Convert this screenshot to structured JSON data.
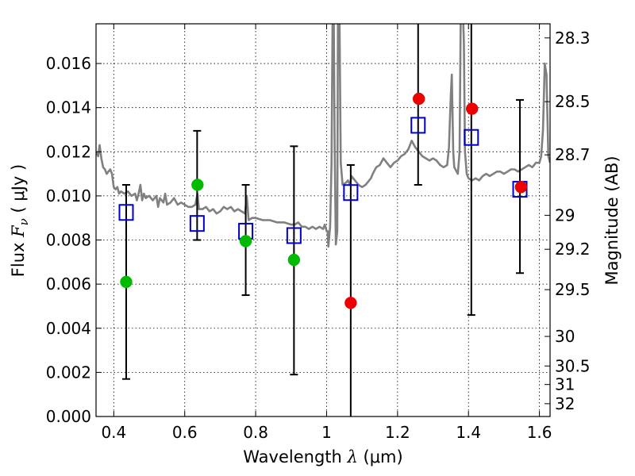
{
  "chart_data": {
    "type": "scatter",
    "title": "",
    "xlabel": {
      "prefix": "Wavelength ",
      "symbol": "λ",
      "units": " (μm)"
    },
    "ylabel": {
      "prefix": "Flux ",
      "symbol": "F",
      "subscript": "ν",
      "units": " ( μJy )"
    },
    "y2label": "Magnitude (AB)",
    "xlim": [
      0.35,
      1.63
    ],
    "ylim": [
      0.0,
      0.0178
    ],
    "grid": true,
    "x_ticks": [
      {
        "value": 0.4,
        "label": "0.4"
      },
      {
        "value": 0.6,
        "label": "0.6"
      },
      {
        "value": 0.8,
        "label": "0.8"
      },
      {
        "value": 1.0,
        "label": "1"
      },
      {
        "value": 1.2,
        "label": "1.2"
      },
      {
        "value": 1.4,
        "label": "1.4"
      },
      {
        "value": 1.6,
        "label": "1.6"
      }
    ],
    "y_ticks": [
      {
        "value": 0.0,
        "label": "0.000"
      },
      {
        "value": 0.002,
        "label": "0.002"
      },
      {
        "value": 0.004,
        "label": "0.004"
      },
      {
        "value": 0.006,
        "label": "0.006"
      },
      {
        "value": 0.008,
        "label": "0.008"
      },
      {
        "value": 0.01,
        "label": "0.010"
      },
      {
        "value": 0.012,
        "label": "0.012"
      },
      {
        "value": 0.014,
        "label": "0.014"
      },
      {
        "value": 0.016,
        "label": "0.016"
      }
    ],
    "y2_ticks": [
      {
        "flux": 0.01716,
        "label": "28.3"
      },
      {
        "flux": 0.01427,
        "label": "28.5"
      },
      {
        "flux": 0.01186,
        "label": "28.7"
      },
      {
        "flux": 0.00912,
        "label": "29"
      },
      {
        "flux": 0.00758,
        "label": "29.2"
      },
      {
        "flux": 0.00575,
        "label": "29.5"
      },
      {
        "flux": 0.00363,
        "label": "30"
      },
      {
        "flux": 0.00229,
        "label": "30.5"
      },
      {
        "flux": 0.00145,
        "label": "31"
      },
      {
        "flux": 0.00058,
        "label": "32"
      }
    ],
    "series": [
      {
        "color": "#808080",
        "kind": "line",
        "points": [
          [
            0.35,
            0.012
          ],
          [
            0.356,
            0.0118
          ],
          [
            0.36,
            0.0123
          ],
          [
            0.365,
            0.0117
          ],
          [
            0.37,
            0.0113
          ],
          [
            0.375,
            0.0112
          ],
          [
            0.38,
            0.011
          ],
          [
            0.385,
            0.0111
          ],
          [
            0.39,
            0.0112
          ],
          [
            0.395,
            0.011
          ],
          [
            0.4,
            0.0104
          ],
          [
            0.405,
            0.0103
          ],
          [
            0.41,
            0.0104
          ],
          [
            0.415,
            0.0101
          ],
          [
            0.42,
            0.0102
          ],
          [
            0.43,
            0.0101
          ],
          [
            0.44,
            0.0102
          ],
          [
            0.45,
            0.01
          ],
          [
            0.46,
            0.0101
          ],
          [
            0.465,
            0.0098
          ],
          [
            0.47,
            0.0101
          ],
          [
            0.475,
            0.0105
          ],
          [
            0.48,
            0.0098
          ],
          [
            0.485,
            0.0101
          ],
          [
            0.49,
            0.0099
          ],
          [
            0.5,
            0.01
          ],
          [
            0.51,
            0.0098
          ],
          [
            0.52,
            0.01
          ],
          [
            0.525,
            0.0095
          ],
          [
            0.53,
            0.0099
          ],
          [
            0.54,
            0.0097
          ],
          [
            0.545,
            0.0101
          ],
          [
            0.55,
            0.0096
          ],
          [
            0.56,
            0.0097
          ],
          [
            0.57,
            0.0099
          ],
          [
            0.58,
            0.0096
          ],
          [
            0.59,
            0.0097
          ],
          [
            0.6,
            0.0096
          ],
          [
            0.61,
            0.0095
          ],
          [
            0.62,
            0.0095
          ],
          [
            0.63,
            0.0096
          ],
          [
            0.636,
            0.0101
          ],
          [
            0.64,
            0.0094
          ],
          [
            0.65,
            0.0094
          ],
          [
            0.66,
            0.0095
          ],
          [
            0.67,
            0.0093
          ],
          [
            0.68,
            0.0094
          ],
          [
            0.69,
            0.0092
          ],
          [
            0.7,
            0.0093
          ],
          [
            0.71,
            0.0095
          ],
          [
            0.72,
            0.0094
          ],
          [
            0.73,
            0.0095
          ],
          [
            0.74,
            0.0093
          ],
          [
            0.75,
            0.0094
          ],
          [
            0.76,
            0.0093
          ],
          [
            0.77,
            0.0092
          ],
          [
            0.775,
            0.01
          ],
          [
            0.78,
            0.0089
          ],
          [
            0.79,
            0.009
          ],
          [
            0.8,
            0.009
          ],
          [
            0.82,
            0.0089
          ],
          [
            0.84,
            0.0089
          ],
          [
            0.86,
            0.0088
          ],
          [
            0.88,
            0.0088
          ],
          [
            0.9,
            0.0087
          ],
          [
            0.91,
            0.0087
          ],
          [
            0.92,
            0.0088
          ],
          [
            0.93,
            0.0086
          ],
          [
            0.94,
            0.0086
          ],
          [
            0.95,
            0.0085
          ],
          [
            0.96,
            0.0086
          ],
          [
            0.97,
            0.0085
          ],
          [
            0.98,
            0.0086
          ],
          [
            0.99,
            0.0085
          ],
          [
            0.995,
            0.0087
          ],
          [
            1.0,
            0.0084
          ],
          [
            1.003,
            0.0084
          ],
          [
            1.005,
            0.0077
          ],
          [
            1.01,
            0.0086
          ],
          [
            1.014,
            0.0115
          ],
          [
            1.017,
            0.0185
          ],
          [
            1.02,
            0.0185
          ],
          [
            1.023,
            0.012
          ],
          [
            1.026,
            0.0078
          ],
          [
            1.03,
            0.0084
          ],
          [
            1.032,
            0.0185
          ],
          [
            1.036,
            0.0185
          ],
          [
            1.04,
            0.0115
          ],
          [
            1.045,
            0.0105
          ],
          [
            1.055,
            0.0106
          ],
          [
            1.06,
            0.0107
          ],
          [
            1.066,
            0.0105
          ],
          [
            1.07,
            0.0109
          ],
          [
            1.08,
            0.0107
          ],
          [
            1.09,
            0.0105
          ],
          [
            1.1,
            0.0104
          ],
          [
            1.11,
            0.0105
          ],
          [
            1.12,
            0.0107
          ],
          [
            1.125,
            0.0108
          ],
          [
            1.13,
            0.011
          ],
          [
            1.14,
            0.0113
          ],
          [
            1.15,
            0.0114
          ],
          [
            1.16,
            0.0117
          ],
          [
            1.17,
            0.0115
          ],
          [
            1.18,
            0.0113
          ],
          [
            1.19,
            0.0115
          ],
          [
            1.2,
            0.0116
          ],
          [
            1.21,
            0.0118
          ],
          [
            1.22,
            0.0119
          ],
          [
            1.23,
            0.0121
          ],
          [
            1.24,
            0.0125
          ],
          [
            1.25,
            0.0122
          ],
          [
            1.26,
            0.012
          ],
          [
            1.27,
            0.0118
          ],
          [
            1.28,
            0.0117
          ],
          [
            1.29,
            0.0116
          ],
          [
            1.3,
            0.0117
          ],
          [
            1.31,
            0.0116
          ],
          [
            1.32,
            0.0114
          ],
          [
            1.33,
            0.0113
          ],
          [
            1.34,
            0.0114
          ],
          [
            1.345,
            0.0122
          ],
          [
            1.35,
            0.0145
          ],
          [
            1.353,
            0.0155
          ],
          [
            1.357,
            0.012
          ],
          [
            1.36,
            0.0113
          ],
          [
            1.37,
            0.011
          ],
          [
            1.375,
            0.012
          ],
          [
            1.378,
            0.018
          ],
          [
            1.381,
            0.0185
          ],
          [
            1.384,
            0.0185
          ],
          [
            1.387,
            0.017
          ],
          [
            1.39,
            0.012
          ],
          [
            1.395,
            0.011
          ],
          [
            1.4,
            0.0108
          ],
          [
            1.41,
            0.0107
          ],
          [
            1.42,
            0.0108
          ],
          [
            1.43,
            0.0107
          ],
          [
            1.44,
            0.0109
          ],
          [
            1.45,
            0.011
          ],
          [
            1.46,
            0.0109
          ],
          [
            1.47,
            0.011
          ],
          [
            1.48,
            0.0111
          ],
          [
            1.49,
            0.0111
          ],
          [
            1.5,
            0.011
          ],
          [
            1.51,
            0.0111
          ],
          [
            1.52,
            0.0112
          ],
          [
            1.53,
            0.0112
          ],
          [
            1.54,
            0.0111
          ],
          [
            1.55,
            0.0112
          ],
          [
            1.56,
            0.0113
          ],
          [
            1.57,
            0.0114
          ],
          [
            1.58,
            0.0113
          ],
          [
            1.59,
            0.0115
          ],
          [
            1.6,
            0.0115
          ],
          [
            1.605,
            0.0118
          ],
          [
            1.61,
            0.013
          ],
          [
            1.615,
            0.016
          ],
          [
            1.62,
            0.0155
          ],
          [
            1.625,
            0.0118
          ],
          [
            1.63,
            0.0115
          ]
        ]
      },
      {
        "color": "#0000cc",
        "kind": "open-square-markers",
        "x": [
          0.435,
          0.635,
          0.772,
          0.908,
          1.068,
          1.258,
          1.408,
          1.545
        ],
        "y": [
          0.00925,
          0.00875,
          0.0084,
          0.0082,
          0.01015,
          0.0132,
          0.01265,
          0.0103
        ]
      },
      {
        "color": "#000000",
        "kind": "error-bars",
        "x": [
          0.435,
          0.635,
          0.772,
          0.908,
          1.068,
          1.258,
          1.408,
          1.545
        ],
        "y_low": [
          0.0017,
          0.008,
          0.0055,
          0.0019,
          -0.001,
          0.0105,
          0.0046,
          0.0065
        ],
        "y_high": [
          0.0105,
          0.01295,
          0.0105,
          0.01225,
          0.0114,
          0.02,
          0.02,
          0.01435
        ]
      },
      {
        "color": "#00bb00",
        "kind": "filled-circle-markers",
        "x": [
          0.435,
          0.636,
          0.772,
          0.908
        ],
        "y": [
          0.0061,
          0.0105,
          0.00795,
          0.0071
        ]
      },
      {
        "color": "#ee0000",
        "kind": "filled-circle-markers",
        "x": [
          1.068,
          1.26,
          1.41,
          1.548
        ],
        "y": [
          0.00515,
          0.0144,
          0.01395,
          0.0104
        ]
      }
    ]
  }
}
